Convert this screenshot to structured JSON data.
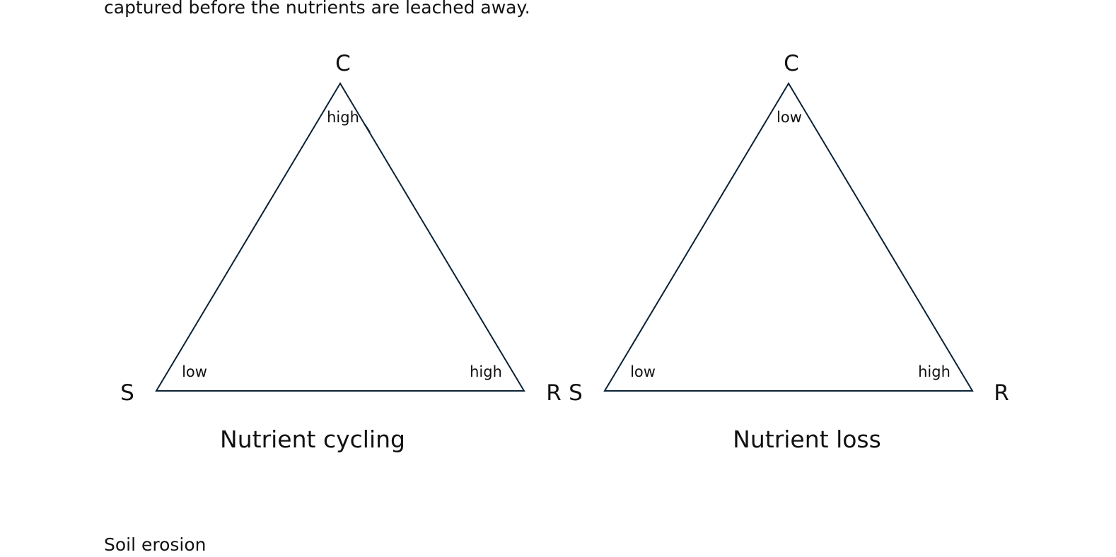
{
  "text": {
    "top_line": "captured before the nutrients are leached away.",
    "bottom_line": "Soil erosion"
  },
  "diagrams": [
    {
      "caption": "Nutrient cycling",
      "vertices": {
        "top": "C",
        "left": "S",
        "right": "R"
      },
      "levels": {
        "top": "high",
        "left": "low",
        "right": "high"
      }
    },
    {
      "caption": "Nutrient loss",
      "vertices": {
        "top": "C",
        "left": "S",
        "right": "R"
      },
      "levels": {
        "top": "low",
        "left": "low",
        "right": "high"
      }
    }
  ],
  "colors": {
    "line": "#0b2235",
    "text": "#111111"
  }
}
